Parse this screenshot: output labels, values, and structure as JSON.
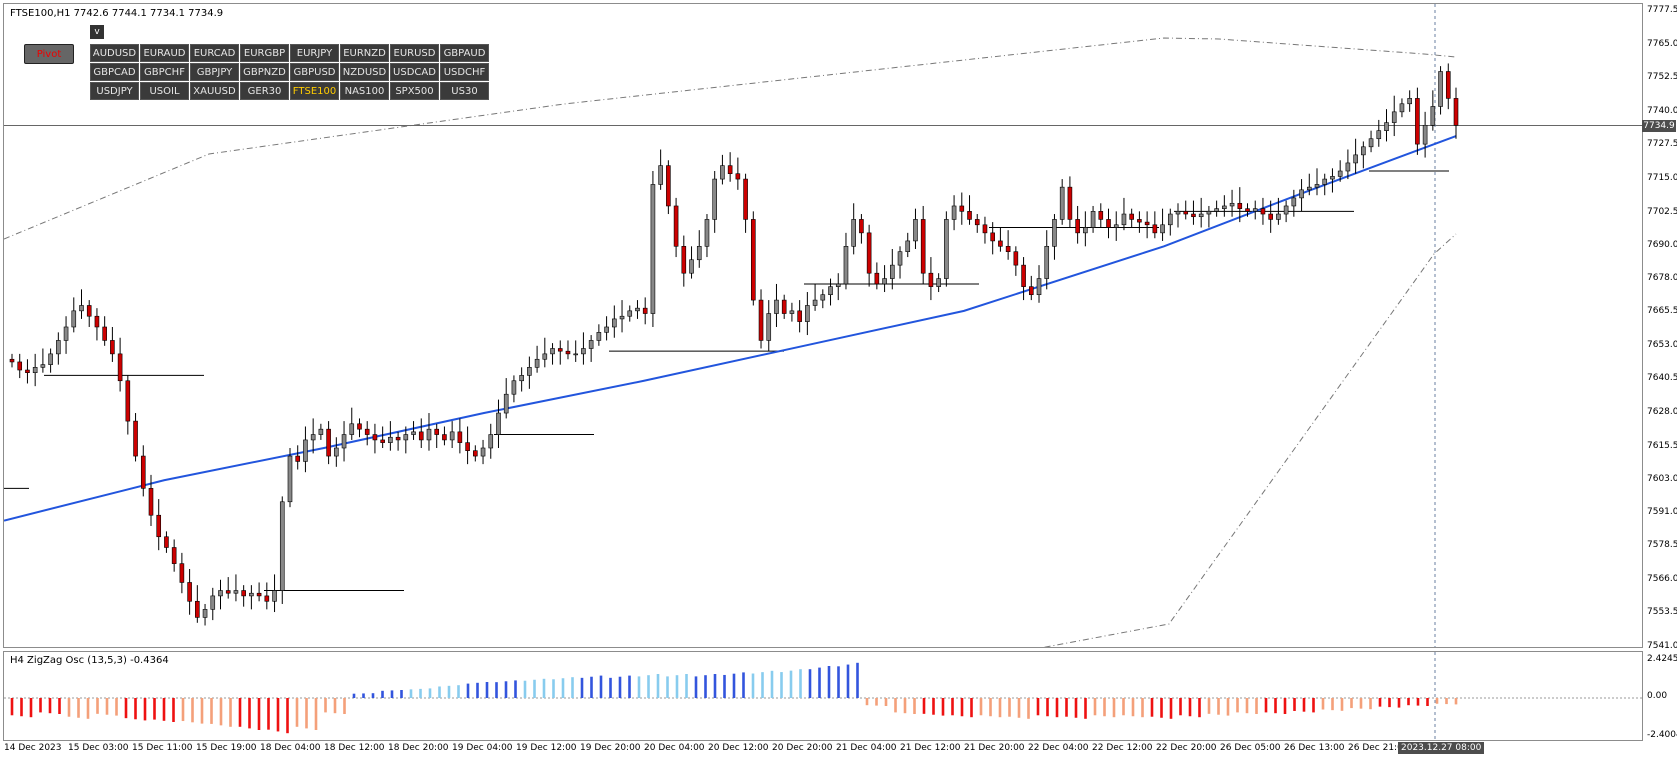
{
  "window": {
    "symbol_info": "FTSE100,H1  7742.6 7744.1 7734.1 7734.9",
    "osc_info": "H4 ZigZag Osc (13,5,3) -0.4364"
  },
  "controls": {
    "pivot_label": "Pivot",
    "collapse_label": "v",
    "active_symbol": "FTSE100",
    "symbols": [
      "AUDUSD",
      "EURAUD",
      "EURCAD",
      "EURGBP",
      "EURJPY",
      "EURNZD",
      "EURUSD",
      "GBPAUD",
      "GBPCAD",
      "GBPCHF",
      "GBPJPY",
      "GBPNZD",
      "GBPUSD",
      "NZDUSD",
      "USDCAD",
      "USDCHF",
      "USDJPY",
      "USOIL",
      "XAUUSD",
      "GER30",
      "FTSE100",
      "NAS100",
      "SPX500",
      "US30"
    ]
  },
  "price_axis": {
    "labels": [
      "7777.5",
      "7765.0",
      "7752.5",
      "7740.0",
      "7727.5",
      "7715.0",
      "7702.5",
      "7690.0",
      "7678.0",
      "7665.5",
      "7653.0",
      "7640.5",
      "7628.0",
      "7615.5",
      "7603.0",
      "7591.0",
      "7578.5",
      "7566.0",
      "7553.5",
      "7541.0"
    ],
    "current_price": "7734.9"
  },
  "osc_axis": {
    "labels": [
      "2.4245",
      "0.00",
      "-2.4004"
    ]
  },
  "time_axis": {
    "labels": [
      "14 Dec 2023",
      "15 Dec 03:00",
      "15 Dec 11:00",
      "15 Dec 19:00",
      "18 Dec 04:00",
      "18 Dec 12:00",
      "18 Dec 20:00",
      "19 Dec 04:00",
      "19 Dec 12:00",
      "19 Dec 20:00",
      "20 Dec 04:00",
      "20 Dec 12:00",
      "20 Dec 20:00",
      "21 Dec 04:00",
      "21 Dec 12:00",
      "21 Dec 20:00",
      "22 Dec 04:00",
      "22 Dec 12:00",
      "22 Dec 20:00",
      "26 Dec 05:00",
      "26 Dec 13:00",
      "26 Dec 21:00"
    ],
    "current_time": "2023.12.27 08:00"
  },
  "colors": {
    "bull": "#888888",
    "bear": "#cc0000",
    "ma": "#2255dd",
    "osc_red": "#ee1111",
    "osc_salmon": "#f4a07a",
    "osc_blue": "#3355dd",
    "osc_lightblue": "#88ccee"
  },
  "chart_data": {
    "type": "candlestick",
    "ylim": [
      7541.0,
      7777.5
    ],
    "closes": [
      7647,
      7644,
      7643,
      7645,
      7646,
      7650,
      7655,
      7660,
      7666,
      7668,
      7664,
      7660,
      7655,
      7650,
      7640,
      7625,
      7612,
      7600,
      7590,
      7582,
      7578,
      7572,
      7565,
      7558,
      7552,
      7555,
      7560,
      7562,
      7561,
      7562,
      7560,
      7561,
      7560,
      7558,
      7562,
      7595,
      7612,
      7610,
      7618,
      7620,
      7622,
      7612,
      7615,
      7620,
      7624,
      7622,
      7620,
      7618,
      7617,
      7619,
      7618,
      7620,
      7621,
      7618,
      7622,
      7620,
      7618,
      7621,
      7617,
      7614,
      7612,
      7615,
      7620,
      7628,
      7635,
      7640,
      7642,
      7645,
      7648,
      7650,
      7652,
      7651,
      7650,
      7650,
      7652,
      7655,
      7658,
      7660,
      7663,
      7664,
      7666,
      7667,
      7665,
      7713,
      7720,
      7705,
      7690,
      7680,
      7685,
      7690,
      7700,
      7715,
      7720,
      7717,
      7715,
      7700,
      7670,
      7655,
      7665,
      7670,
      7665,
      7666,
      7662,
      7668,
      7670,
      7672,
      7675,
      7676,
      7690,
      7700,
      7695,
      7680,
      7676,
      7678,
      7683,
      7688,
      7692,
      7700,
      7680,
      7675,
      7678,
      7700,
      7705,
      7703,
      7700,
      7698,
      7695,
      7692,
      7690,
      7688,
      7683,
      7675,
      7672,
      7678,
      7690,
      7700,
      7712,
      7700,
      7695,
      7697,
      7703,
      7700,
      7697,
      7698,
      7702,
      7700,
      7699,
      7698,
      7695,
      7698,
      7702,
      7703,
      7702,
      7701,
      7702,
      7703,
      7704,
      7705,
      7706,
      7704,
      7703,
      7704,
      7702,
      7700,
      7702,
      7705,
      7708,
      7711,
      7712,
      7713,
      7715,
      7716,
      7718,
      7721,
      7724,
      7727,
      7730,
      7733,
      7736,
      7740,
      7743,
      7745,
      7728,
      7735,
      7742,
      7755,
      7745,
      7735
    ],
    "ma_values": [
      7588,
      7603,
      7615,
      7628,
      7640,
      7653,
      7666,
      7690,
      7710,
      7731
    ],
    "osc_values": [
      -1.2,
      -1.0,
      -1.3,
      -1.1,
      -1.4,
      -1.5,
      -1.6,
      -1.8,
      -2.0,
      -2.2,
      -2.0,
      -1.0,
      0.3,
      0.5,
      0.6,
      0.8,
      1.0,
      1.1,
      1.2,
      1.3,
      1.4,
      1.4,
      1.5,
      1.5,
      1.5,
      1.6,
      1.7,
      1.8,
      2.0,
      2.2,
      -0.5,
      -1.0,
      -1.1,
      -1.2,
      -1.2,
      -1.3,
      -1.2,
      -1.3,
      -1.2,
      -1.2,
      -1.3,
      -1.2,
      -1.1,
      -1.0,
      -1.0,
      -0.9,
      -0.8,
      -0.7,
      -0.6,
      -0.5,
      -0.4
    ]
  }
}
